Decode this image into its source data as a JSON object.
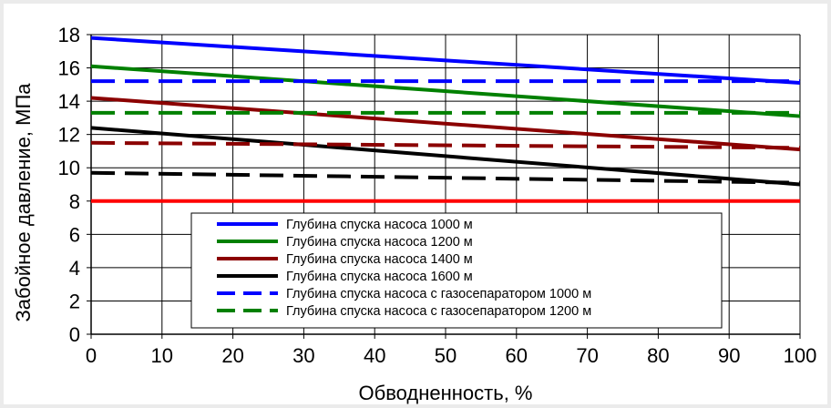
{
  "chart_data": {
    "type": "line",
    "xlabel": "Обводненность, %",
    "ylabel": "Забойное давление, МПа",
    "xlim": [
      0,
      100
    ],
    "ylim": [
      0,
      18
    ],
    "x_ticks": [
      "0",
      "10",
      "20",
      "30",
      "40",
      "50",
      "60",
      "70",
      "80",
      "90",
      "100"
    ],
    "y_ticks": [
      "0",
      "2",
      "4",
      "6",
      "8",
      "10",
      "12",
      "14",
      "16",
      "18"
    ],
    "grid": true,
    "legend_position": "bottom-center",
    "x": [
      0,
      100
    ],
    "series": [
      {
        "name": "Глубина спуска насоса 1000 м",
        "color": "#0000ff",
        "dash": false,
        "values": [
          17.8,
          15.1
        ]
      },
      {
        "name": "Глубина спуска насоса 1200 м",
        "color": "#008000",
        "dash": false,
        "values": [
          16.1,
          13.1
        ]
      },
      {
        "name": "Глубина спуска насоса 1400 м",
        "color": "#8b0000",
        "dash": false,
        "values": [
          14.2,
          11.1
        ]
      },
      {
        "name": "Глубина спуска насоса 1600 м",
        "color": "#000000",
        "dash": false,
        "values": [
          12.4,
          9.0
        ]
      },
      {
        "name": "Глубина спуска насоса с газосепаратором  1000 м",
        "color": "#0000ff",
        "dash": true,
        "values": [
          15.2,
          15.2
        ]
      },
      {
        "name": "Глубина спуска насоса с газосепаратором  1200 м",
        "color": "#008000",
        "dash": true,
        "values": [
          13.3,
          13.3
        ]
      },
      {
        "name": "",
        "color": "#8b0000",
        "dash": true,
        "values": [
          11.5,
          11.2
        ]
      },
      {
        "name": "",
        "color": "#000000",
        "dash": true,
        "values": [
          9.7,
          9.1
        ]
      },
      {
        "name": "",
        "color": "#ff0000",
        "dash": false,
        "values": [
          8.0,
          8.0
        ]
      }
    ]
  }
}
